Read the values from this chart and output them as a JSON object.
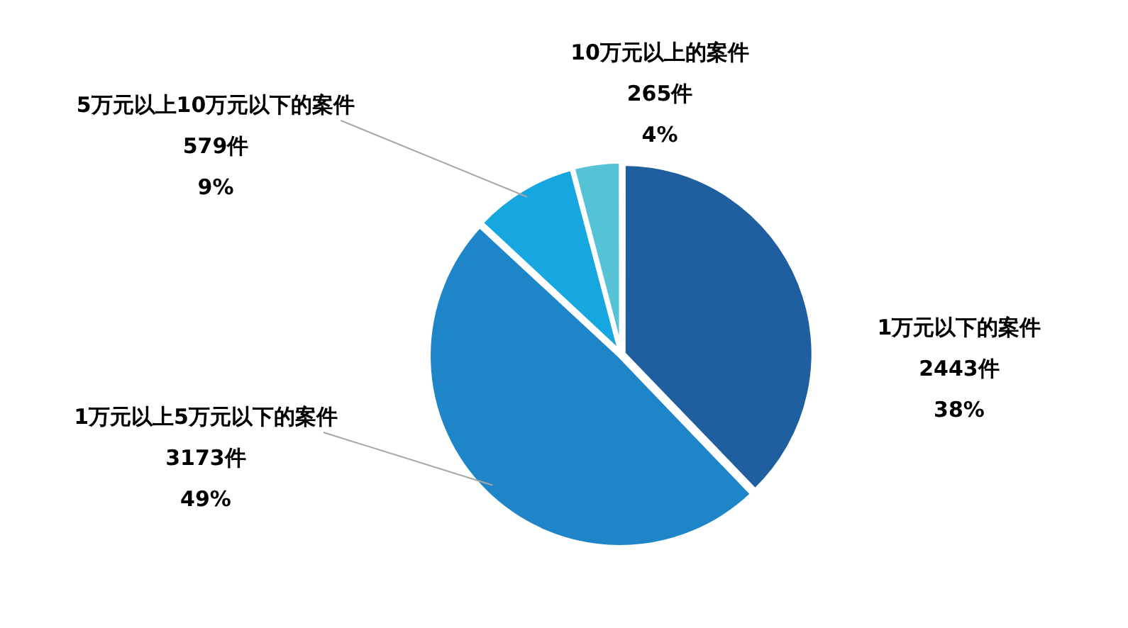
{
  "chart_data": {
    "type": "pie",
    "categories": [
      "1万元以下的案件",
      "1万元以上5万元以下的案件",
      "5万元以上10万元以下的案件",
      "10万元以上的案件"
    ],
    "values": [
      2443,
      3173,
      579,
      265
    ],
    "colors": [
      "#1f5fa0",
      "#1e85c8",
      "#17a7e0",
      "#55c2d6"
    ],
    "value_labels": [
      "2443件\n38%",
      "3173件\n49%",
      "579件\n9%",
      "265件\n4%"
    ],
    "legend": false
  }
}
